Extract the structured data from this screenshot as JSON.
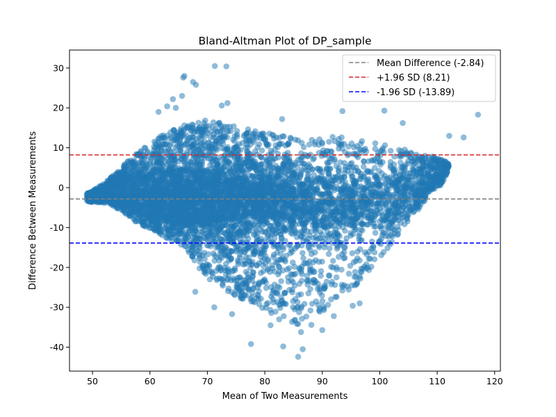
{
  "chart_data": {
    "type": "scatter",
    "title": "Bland-Altman Plot of DP_sample",
    "xlabel": "Mean of Two Measurements",
    "ylabel": "Difference Between Measurements",
    "xlim": [
      46,
      121
    ],
    "ylim": [
      -46,
      34.5
    ],
    "xticks": [
      50,
      60,
      70,
      80,
      90,
      100,
      110,
      120
    ],
    "yticks": [
      -40,
      -30,
      -20,
      -10,
      0,
      10,
      20,
      30
    ],
    "grid": false,
    "legend_position": "top-right",
    "point_color": "#1f77b4",
    "point_opacity": 0.5,
    "reference_lines": [
      {
        "name": "Mean Difference (-2.84)",
        "y": -2.84,
        "color": "#808080",
        "style": "dashed"
      },
      {
        "name": "+1.96 SD (8.21)",
        "y": 8.21,
        "color": "#d62728",
        "style": "dashed"
      },
      {
        "name": "-1.96 SD (-13.89)",
        "y": -13.89,
        "color": "#0000ff",
        "style": "dashed"
      }
    ],
    "scatter_region": {
      "lower_edge": [
        [
          49,
          -3.5
        ],
        [
          53,
          -4
        ],
        [
          56,
          -7
        ],
        [
          58,
          -9
        ],
        [
          61,
          -11
        ],
        [
          63,
          -13
        ],
        [
          66,
          -15
        ],
        [
          68,
          -19
        ],
        [
          70,
          -23
        ],
        [
          73,
          -26
        ],
        [
          76,
          -28
        ],
        [
          80,
          -31
        ],
        [
          83,
          -33
        ],
        [
          85,
          -35
        ],
        [
          88,
          -32
        ],
        [
          92,
          -30
        ],
        [
          95,
          -26
        ],
        [
          98,
          -21
        ],
        [
          101,
          -16
        ],
        [
          104,
          -10
        ],
        [
          107,
          -5
        ],
        [
          109,
          -1
        ],
        [
          111,
          1
        ],
        [
          112,
          5
        ]
      ],
      "upper_edge": [
        [
          49,
          -1.5
        ],
        [
          52,
          1
        ],
        [
          55,
          5
        ],
        [
          58,
          9
        ],
        [
          61,
          12
        ],
        [
          64,
          15
        ],
        [
          67,
          16
        ],
        [
          70,
          17
        ],
        [
          73,
          16
        ],
        [
          76,
          15
        ],
        [
          80,
          14
        ],
        [
          84,
          13
        ],
        [
          88,
          12
        ],
        [
          92,
          13
        ],
        [
          96,
          12
        ],
        [
          100,
          11
        ],
        [
          103,
          10
        ],
        [
          106,
          9
        ],
        [
          109,
          8
        ],
        [
          111,
          7
        ],
        [
          112,
          6
        ]
      ]
    },
    "outliers": [
      {
        "x": 65.8,
        "y": 27.6
      },
      {
        "x": 66.0,
        "y": 28.0
      },
      {
        "x": 67.5,
        "y": 26.5
      },
      {
        "x": 68.0,
        "y": 25.8
      },
      {
        "x": 71.3,
        "y": 30.5
      },
      {
        "x": 73.3,
        "y": 30.4
      },
      {
        "x": 65.6,
        "y": 23.0
      },
      {
        "x": 64.0,
        "y": 22.2
      },
      {
        "x": 63.0,
        "y": 20.4
      },
      {
        "x": 64.5,
        "y": 20.0
      },
      {
        "x": 72.5,
        "y": 20.6
      },
      {
        "x": 73.5,
        "y": 21.2
      },
      {
        "x": 100.8,
        "y": 19.3
      },
      {
        "x": 117.1,
        "y": 18.3
      },
      {
        "x": 93.5,
        "y": 19.2
      },
      {
        "x": 104.0,
        "y": 16.2
      },
      {
        "x": 114.6,
        "y": 12.6
      },
      {
        "x": 112.1,
        "y": 13.0
      },
      {
        "x": 83.0,
        "y": 17.2
      },
      {
        "x": 61.5,
        "y": 19.0
      },
      {
        "x": 77.6,
        "y": -39.2
      },
      {
        "x": 83.2,
        "y": -39.8
      },
      {
        "x": 85.8,
        "y": -42.4
      },
      {
        "x": 86.6,
        "y": -40.5
      },
      {
        "x": 81.0,
        "y": -34.5
      },
      {
        "x": 86.3,
        "y": -36.2
      },
      {
        "x": 88.1,
        "y": -34.4
      },
      {
        "x": 90.0,
        "y": -35.7
      },
      {
        "x": 71.2,
        "y": -30.0
      },
      {
        "x": 74.3,
        "y": -31.7
      },
      {
        "x": 67.9,
        "y": -26.1
      },
      {
        "x": 82.5,
        "y": -33.0
      },
      {
        "x": 78.0,
        "y": -28.5
      },
      {
        "x": 92.0,
        "y": -32.2
      },
      {
        "x": 95.3,
        "y": -29.6
      },
      {
        "x": 96.5,
        "y": -29.0
      }
    ]
  }
}
